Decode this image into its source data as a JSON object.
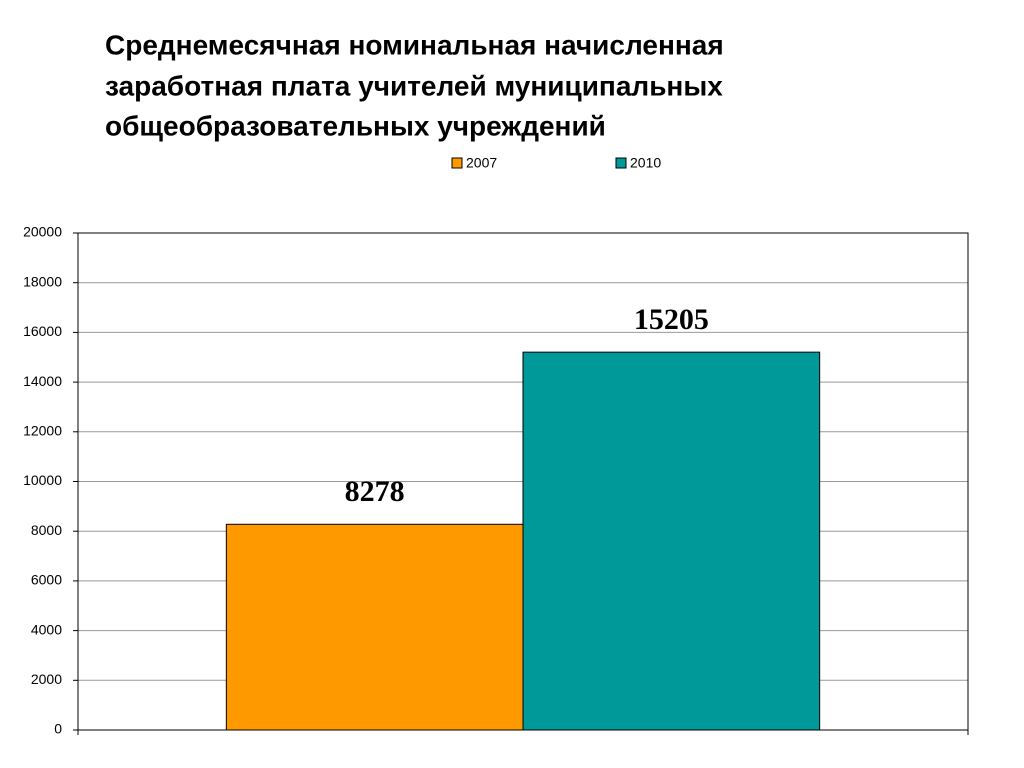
{
  "chart_data": {
    "type": "bar",
    "title": [
      "Среднемесячная номинальная начисленная",
      "заработная плата учителей муниципальных",
      "общеобразовательных учреждений"
    ],
    "categories": [
      null
    ],
    "series": [
      {
        "name": "2007",
        "color": "#ff9900",
        "values": [
          8278
        ]
      },
      {
        "name": "2010",
        "color": "#009999",
        "values": [
          15205
        ]
      }
    ],
    "ylim": [
      0,
      20000
    ],
    "yticks": [
      0,
      2000,
      4000,
      6000,
      8000,
      10000,
      12000,
      14000,
      16000,
      18000,
      20000
    ],
    "grid": true,
    "legend": "top",
    "data_labels": true
  }
}
